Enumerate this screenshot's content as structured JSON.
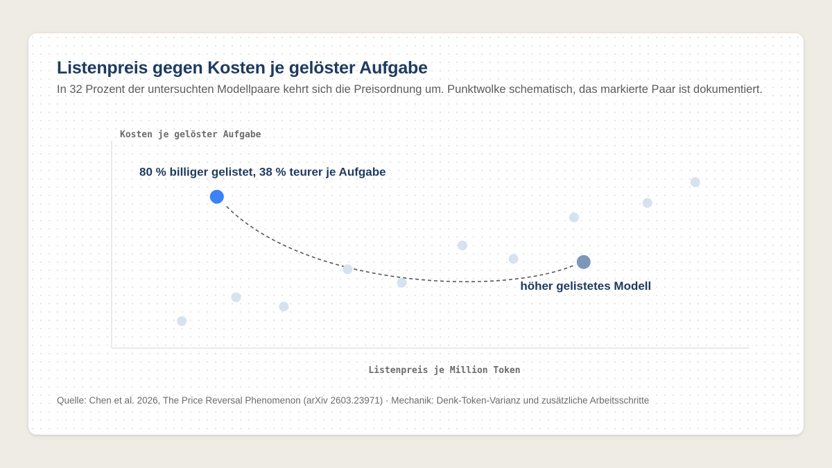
{
  "title": "Listenpreis gegen Kosten je gelöster Aufgabe",
  "subtitle": "In 32 Prozent der untersuchten Modellpaare kehrt sich die Preisordnung um. Punktwolke schematisch, das markierte Paar ist dokumentiert.",
  "source": "Quelle: Chen et al. 2026, The Price Reversal Phenomenon (arXiv 2603.23971) · Mechanik: Denk-Token-Varianz und zusätzliche Arbeitsschritte",
  "colors": {
    "background_point": "#d6e2f0",
    "highlight_cheap": "#3b82f6",
    "highlight_expensive": "#7d97b8",
    "annotation_text": "#1e3a5f",
    "connector": "#555555"
  },
  "chart_data": {
    "type": "scatter",
    "xlabel": "Listenpreis je Million Token",
    "ylabel": "Kosten je gelöster Aufgabe",
    "xlim": [
      0,
      100
    ],
    "ylim": [
      0,
      100
    ],
    "grid": false,
    "schematic": true,
    "series": [
      {
        "role": "background",
        "points": [
          {
            "x": 11,
            "y": 13
          },
          {
            "x": 19.5,
            "y": 24.5
          },
          {
            "x": 27,
            "y": 20
          },
          {
            "x": 37,
            "y": 38
          },
          {
            "x": 45.5,
            "y": 31.5
          },
          {
            "x": 55,
            "y": 49.5
          },
          {
            "x": 63,
            "y": 43
          },
          {
            "x": 72.5,
            "y": 63
          },
          {
            "x": 84,
            "y": 70
          },
          {
            "x": 91.5,
            "y": 80
          }
        ]
      },
      {
        "role": "highlight",
        "points": [
          {
            "x": 16.5,
            "y": 73,
            "label": "80 % billiger gelistet, 38 % teurer je Aufgabe"
          },
          {
            "x": 74,
            "y": 41.5,
            "label": "höher gelistetes Modell"
          }
        ]
      }
    ]
  }
}
